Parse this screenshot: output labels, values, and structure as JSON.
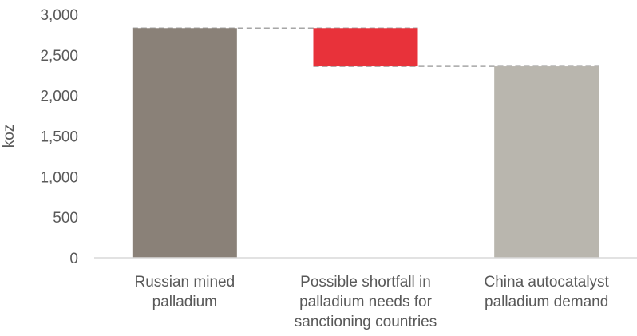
{
  "chart_data": {
    "type": "bar",
    "subtype": "waterfall",
    "title": "",
    "xlabel": "",
    "ylabel": "koz",
    "ylim": [
      0,
      3000
    ],
    "yticks": [
      0,
      500,
      1000,
      1500,
      2000,
      2500,
      3000
    ],
    "ytick_labels": [
      "0",
      "500",
      "1,000",
      "1,500",
      "2,000",
      "2,500",
      "3,000"
    ],
    "grid": false,
    "legend": "none",
    "categories": [
      [
        "Russian mined",
        "palladium"
      ],
      [
        "Possible shortfall in",
        "palladium needs for",
        "sanctioning countries"
      ],
      [
        "China autocatalyst",
        "palladium demand"
      ]
    ],
    "bars": [
      {
        "start": 0,
        "end": 2830,
        "color": "#8a8178"
      },
      {
        "start": 2830,
        "end": 2360,
        "color": "#e8323a"
      },
      {
        "start": 0,
        "end": 2360,
        "color": "#b9b6ae"
      }
    ],
    "connector_color": "#a6a6a6",
    "axis_color": "#d9d9d9",
    "text_color": "#595959"
  }
}
